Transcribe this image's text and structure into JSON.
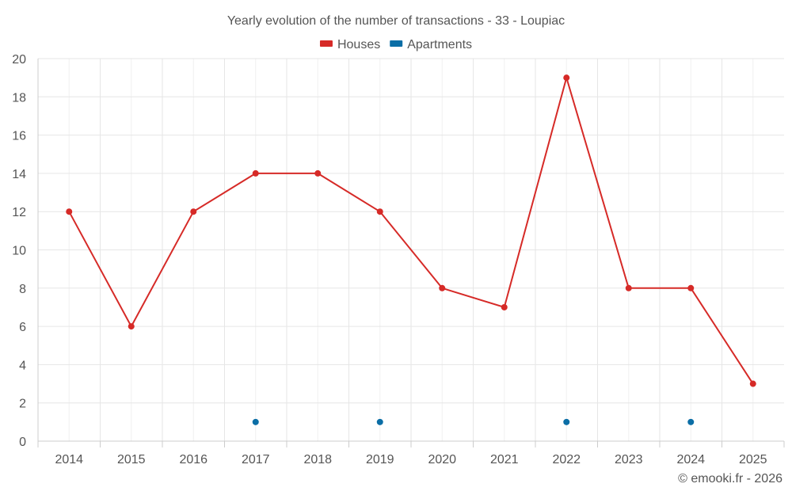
{
  "chart_data": {
    "type": "line",
    "title": "Yearly evolution of the number of transactions - 33 - Loupiac",
    "xlabel": "",
    "ylabel": "",
    "categories": [
      "2014",
      "2015",
      "2016",
      "2017",
      "2018",
      "2019",
      "2020",
      "2021",
      "2022",
      "2023",
      "2024",
      "2025"
    ],
    "ylim": [
      0,
      20
    ],
    "yticks": [
      0,
      2,
      4,
      6,
      8,
      10,
      12,
      14,
      16,
      18,
      20
    ],
    "grid": true,
    "legend_position": "top-center",
    "series": [
      {
        "name": "Houses",
        "color": "#d62a27",
        "values": [
          12,
          6,
          12,
          14,
          14,
          12,
          8,
          7,
          19,
          8,
          8,
          3
        ]
      },
      {
        "name": "Apartments",
        "color": "#0b6ea6",
        "values": [
          null,
          null,
          null,
          1,
          null,
          1,
          null,
          null,
          1,
          null,
          1,
          null
        ]
      }
    ]
  },
  "credit": "© emooki.fr - 2026"
}
